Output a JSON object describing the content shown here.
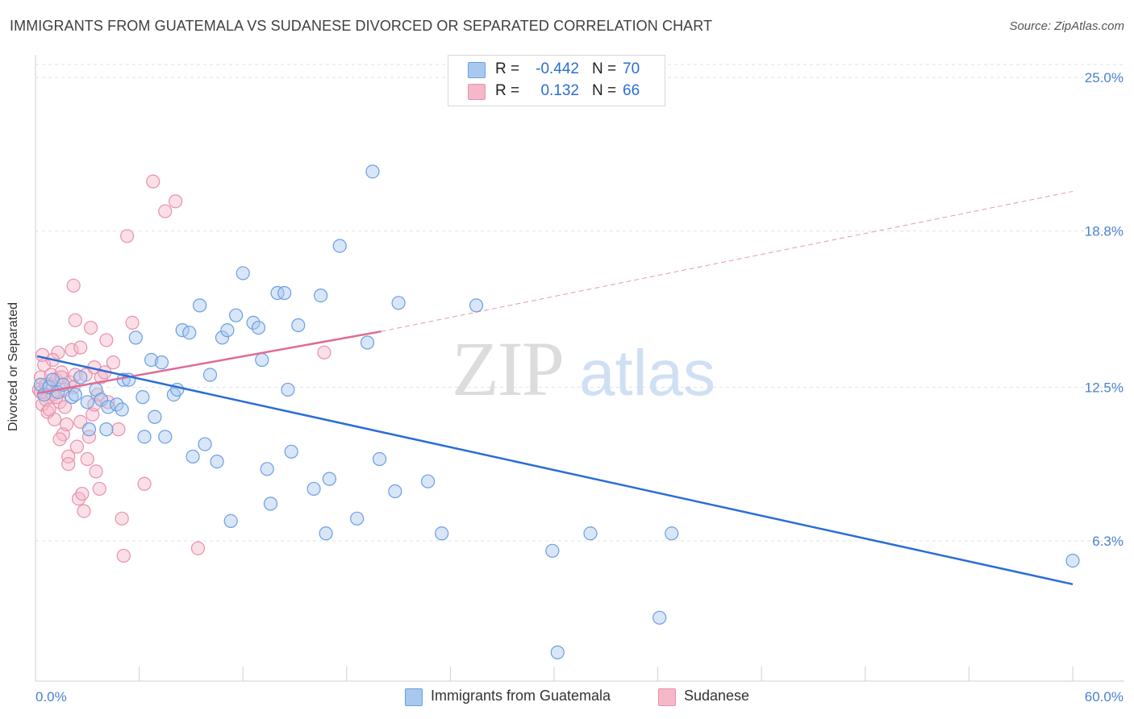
{
  "header": {
    "title": "IMMIGRANTS FROM GUATEMALA VS SUDANESE DIVORCED OR SEPARATED CORRELATION CHART",
    "source": "Source: ZipAtlas.com"
  },
  "watermark": {
    "zip": "ZIP",
    "atlas": "atlas"
  },
  "stats": [
    {
      "r_label": "R =",
      "r_value": "-0.442",
      "n_label": "N =",
      "n_value": "70",
      "color": "#a8c8f0"
    },
    {
      "r_label": "R =",
      "r_value": "0.132",
      "n_label": "N =",
      "n_value": "66",
      "color": "#f5b8c8"
    }
  ],
  "legend": [
    {
      "label": "Immigrants from Guatemala",
      "color": "#a8c8f0"
    },
    {
      "label": "Sudanese",
      "color": "#f5b8c8"
    }
  ],
  "colors": {
    "blue_fill": "#a8c8f0",
    "blue_stroke": "#6a9fe0",
    "blue_line": "#2a6dd6",
    "pink_fill": "#f5b8c8",
    "pink_stroke": "#e890ac",
    "pink_line": "#e06a93",
    "tick_label": "#4a80d0"
  },
  "chart_data": {
    "type": "scatter",
    "title": "IMMIGRANTS FROM GUATEMALA VS SUDANESE DIVORCED OR SEPARATED CORRELATION CHART",
    "xlabel": "",
    "ylabel": "Divorced or Separated",
    "xlim": [
      0,
      60
    ],
    "ylim": [
      0,
      26
    ],
    "x_tick_labels": [
      "0.0%",
      "60.0%"
    ],
    "y_ticks": [
      6.3,
      12.5,
      18.8,
      25.0
    ],
    "y_tick_labels": [
      "6.3%",
      "12.5%",
      "18.8%",
      "25.0%"
    ],
    "grid": true,
    "legend_position": "bottom-center",
    "series": [
      {
        "name": "Immigrants from Guatemala",
        "color": "#a8c8f0",
        "trend": {
          "x": [
            0.1,
            60.0
          ],
          "y": [
            13.75,
            4.55
          ],
          "style": "solid"
        },
        "points": [
          [
            0.3,
            12.6
          ],
          [
            0.5,
            12.2
          ],
          [
            0.8,
            12.5
          ],
          [
            1.0,
            12.8
          ],
          [
            1.3,
            12.3
          ],
          [
            1.6,
            12.6
          ],
          [
            2.1,
            12.1
          ],
          [
            2.3,
            12.2
          ],
          [
            2.6,
            12.9
          ],
          [
            3.0,
            11.9
          ],
          [
            3.1,
            10.8
          ],
          [
            3.5,
            12.4
          ],
          [
            3.8,
            12.0
          ],
          [
            4.1,
            10.8
          ],
          [
            4.2,
            11.7
          ],
          [
            4.7,
            11.8
          ],
          [
            5.0,
            11.6
          ],
          [
            5.1,
            12.8
          ],
          [
            5.4,
            12.8
          ],
          [
            5.8,
            14.5
          ],
          [
            6.2,
            12.1
          ],
          [
            6.3,
            10.5
          ],
          [
            6.7,
            13.6
          ],
          [
            6.9,
            11.3
          ],
          [
            7.3,
            13.5
          ],
          [
            7.5,
            10.5
          ],
          [
            8.0,
            12.2
          ],
          [
            8.2,
            12.4
          ],
          [
            8.5,
            14.8
          ],
          [
            8.9,
            14.7
          ],
          [
            9.1,
            9.7
          ],
          [
            9.5,
            15.8
          ],
          [
            9.8,
            10.2
          ],
          [
            10.1,
            13.0
          ],
          [
            10.5,
            9.5
          ],
          [
            10.8,
            14.5
          ],
          [
            11.1,
            14.8
          ],
          [
            11.3,
            7.1
          ],
          [
            11.6,
            15.4
          ],
          [
            12.0,
            17.1
          ],
          [
            12.6,
            15.1
          ],
          [
            12.9,
            14.9
          ],
          [
            13.1,
            13.6
          ],
          [
            13.6,
            7.8
          ],
          [
            13.4,
            9.2
          ],
          [
            14.0,
            16.3
          ],
          [
            14.4,
            16.3
          ],
          [
            14.8,
            9.9
          ],
          [
            14.6,
            12.4
          ],
          [
            15.2,
            15.0
          ],
          [
            16.1,
            8.4
          ],
          [
            16.5,
            16.2
          ],
          [
            16.8,
            6.6
          ],
          [
            17.0,
            8.8
          ],
          [
            17.6,
            18.2
          ],
          [
            18.6,
            7.2
          ],
          [
            19.2,
            14.3
          ],
          [
            19.5,
            21.2
          ],
          [
            19.9,
            9.6
          ],
          [
            20.8,
            8.3
          ],
          [
            21.0,
            15.9
          ],
          [
            22.7,
            8.7
          ],
          [
            23.5,
            6.6
          ],
          [
            25.5,
            15.8
          ],
          [
            29.9,
            5.9
          ],
          [
            32.1,
            6.6
          ],
          [
            36.8,
            6.6
          ],
          [
            36.1,
            3.2
          ],
          [
            30.2,
            1.8
          ],
          [
            60.0,
            5.5
          ]
        ]
      },
      {
        "name": "Sudanese",
        "color": "#f5b8c8",
        "trend": {
          "x": [
            0.1,
            20.0
          ],
          "y": [
            12.25,
            14.75
          ],
          "style": "solid",
          "extend_to_x": 60.0,
          "extend_to_y": 20.4
        },
        "points": [
          [
            0.2,
            12.4
          ],
          [
            0.3,
            12.9
          ],
          [
            0.4,
            11.8
          ],
          [
            0.5,
            13.4
          ],
          [
            0.6,
            12.0
          ],
          [
            0.7,
            11.5
          ],
          [
            0.8,
            12.6
          ],
          [
            0.9,
            13.0
          ],
          [
            1.0,
            12.2
          ],
          [
            1.1,
            11.2
          ],
          [
            1.2,
            12.8
          ],
          [
            1.3,
            13.9
          ],
          [
            1.4,
            11.9
          ],
          [
            1.5,
            13.1
          ],
          [
            1.6,
            10.6
          ],
          [
            1.7,
            12.4
          ],
          [
            1.8,
            11.0
          ],
          [
            1.9,
            9.7
          ],
          [
            2.0,
            12.7
          ],
          [
            2.1,
            14.0
          ],
          [
            2.2,
            12.5
          ],
          [
            2.3,
            13.0
          ],
          [
            2.4,
            10.1
          ],
          [
            2.5,
            8.0
          ],
          [
            2.6,
            11.1
          ],
          [
            2.7,
            8.2
          ],
          [
            2.8,
            7.5
          ],
          [
            2.9,
            13.0
          ],
          [
            3.0,
            9.6
          ],
          [
            3.1,
            10.5
          ],
          [
            3.2,
            14.9
          ],
          [
            3.3,
            11.4
          ],
          [
            3.4,
            13.3
          ],
          [
            3.5,
            9.1
          ],
          [
            3.6,
            12.2
          ],
          [
            3.7,
            8.4
          ],
          [
            3.8,
            12.9
          ],
          [
            4.0,
            13.1
          ],
          [
            4.2,
            11.9
          ],
          [
            4.5,
            13.5
          ],
          [
            4.8,
            10.8
          ],
          [
            5.0,
            7.2
          ],
          [
            5.3,
            18.6
          ],
          [
            5.6,
            15.1
          ],
          [
            6.3,
            8.6
          ],
          [
            5.1,
            5.7
          ],
          [
            6.8,
            20.8
          ],
          [
            7.5,
            19.6
          ],
          [
            8.1,
            20.0
          ],
          [
            9.4,
            6.0
          ],
          [
            16.7,
            13.9
          ],
          [
            0.3,
            12.3
          ],
          [
            0.4,
            13.8
          ],
          [
            0.6,
            12.6
          ],
          [
            0.8,
            11.6
          ],
          [
            1.0,
            13.6
          ],
          [
            1.2,
            12.1
          ],
          [
            1.4,
            10.4
          ],
          [
            1.5,
            12.9
          ],
          [
            1.7,
            11.7
          ],
          [
            1.9,
            9.4
          ],
          [
            2.2,
            16.6
          ],
          [
            2.3,
            15.2
          ],
          [
            2.6,
            14.1
          ],
          [
            3.4,
            11.8
          ],
          [
            4.1,
            14.4
          ]
        ]
      }
    ]
  }
}
